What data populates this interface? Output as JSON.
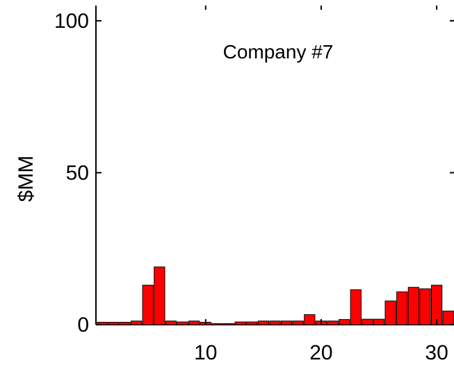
{
  "chart_data": {
    "type": "bar",
    "title": "Company #7",
    "xlabel": "",
    "ylabel": "$MM",
    "xlim": [
      0.5,
      31.5
    ],
    "ylim": [
      0,
      105
    ],
    "x": [
      1,
      2,
      3,
      4,
      5,
      6,
      7,
      8,
      9,
      10,
      11,
      12,
      13,
      14,
      15,
      16,
      17,
      18,
      19,
      20,
      21,
      22,
      23,
      24,
      25,
      26,
      27,
      28,
      29,
      30,
      31
    ],
    "values": [
      0.8,
      0.8,
      0.8,
      1.2,
      13,
      19,
      1.2,
      0.9,
      1.2,
      0.8,
      0.3,
      0.3,
      0.9,
      0.9,
      1.2,
      1.2,
      1.2,
      1.2,
      3.3,
      1.2,
      1.2,
      1.7,
      11.5,
      1.8,
      1.8,
      7.8,
      10.8,
      12.3,
      11.8,
      13,
      4.5
    ],
    "x_ticks": [
      10,
      20,
      30
    ],
    "y_ticks": [
      0,
      50,
      100
    ],
    "grid": false,
    "bar_color": "#ff0000",
    "bar_edge_color": "#000000"
  }
}
